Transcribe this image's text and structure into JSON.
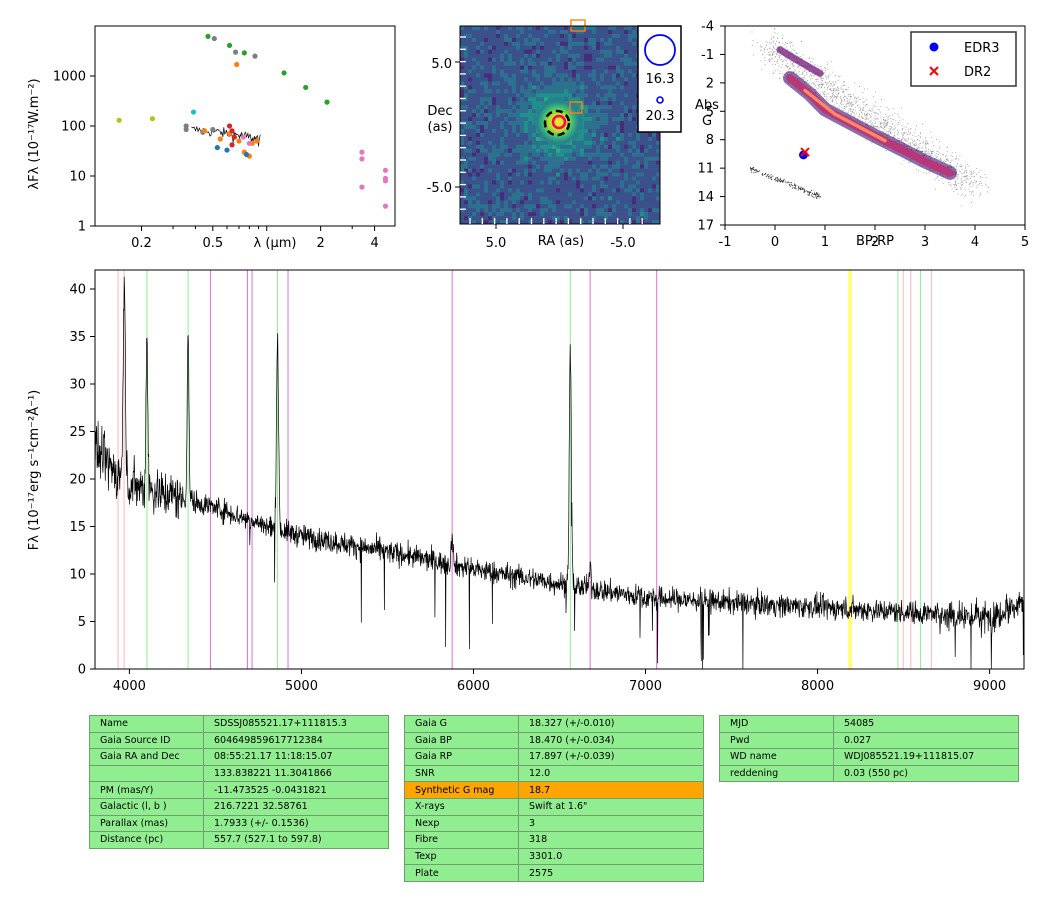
{
  "chart_data": [
    {
      "type": "scatter",
      "panel": "sed",
      "xlabel": "λ (μm)",
      "ylabel": "λFλ (10⁻¹⁷W.m⁻²)",
      "xscale": "log",
      "yscale": "log",
      "xlim": [
        0.11,
        5.2
      ],
      "ylim": [
        1,
        10000
      ],
      "xticks": [
        "0.2",
        "0.5",
        "2",
        "4"
      ],
      "yticks": [
        "1",
        "10",
        "100",
        "1000"
      ],
      "series": [
        {
          "color": "#2ca02c",
          "points": [
            [
              0.47,
              6200
            ],
            [
              0.62,
              4100
            ],
            [
              0.75,
              2900
            ],
            [
              1.25,
              1150
            ],
            [
              1.65,
              590
            ],
            [
              2.17,
              300
            ]
          ]
        },
        {
          "color": "#7f7f7f",
          "points": [
            [
              0.51,
              5600
            ],
            [
              0.67,
              3000
            ],
            [
              0.86,
              2500
            ],
            [
              0.355,
              85
            ],
            [
              0.355,
              100
            ],
            [
              0.44,
              75
            ],
            [
              0.5,
              85
            ]
          ]
        },
        {
          "color": "#ff7f0e",
          "points": [
            [
              0.68,
              1700
            ],
            [
              0.45,
              80
            ],
            [
              0.55,
              55
            ],
            [
              0.62,
              70
            ],
            [
              0.7,
              50
            ],
            [
              0.75,
              30
            ],
            [
              0.8,
              25
            ],
            [
              0.83,
              45
            ],
            [
              0.88,
              50
            ]
          ]
        },
        {
          "color": "#bcbd22",
          "points": [
            [
              0.15,
              130
            ],
            [
              0.23,
              140
            ]
          ]
        },
        {
          "color": "#17becf",
          "points": [
            [
              0.39,
              190
            ]
          ]
        },
        {
          "color": "#1f77b4",
          "points": [
            [
              0.53,
              37
            ],
            [
              0.6,
              33
            ],
            [
              0.77,
              27
            ]
          ]
        },
        {
          "color": "#d62728",
          "points": [
            [
              0.62,
              100
            ],
            [
              0.64,
              80
            ],
            [
              0.66,
              60
            ],
            [
              0.64,
              42
            ]
          ]
        },
        {
          "color": "#e377c2",
          "points": [
            [
              3.4,
              30
            ],
            [
              3.4,
              22
            ],
            [
              3.4,
              6
            ],
            [
              4.6,
              13
            ],
            [
              4.6,
              9
            ],
            [
              4.6,
              8
            ],
            [
              4.6,
              2.5
            ],
            [
              0.74,
              60
            ],
            [
              0.8,
              45
            ]
          ]
        }
      ],
      "spectrum_segment": true
    },
    {
      "type": "heatmap",
      "panel": "image",
      "xlabel": "RA (as)",
      "ylabel": "Dec\n(as)",
      "xlim": [
        8,
        -8
      ],
      "ylim": [
        -8,
        8
      ],
      "xticks": [
        "5.0",
        "-5.0"
      ],
      "yticks": [
        "5.0",
        "-5.0"
      ],
      "legend": [
        "16.3",
        "20.3"
      ]
    },
    {
      "type": "scatter",
      "panel": "hrd",
      "xlabel": "BP-RP",
      "ylabel": "Abs\nG",
      "xlim": [
        -1,
        5
      ],
      "ylim": [
        17,
        -4
      ],
      "xticks": [
        "-1",
        "0",
        "1",
        "2",
        "3",
        "4",
        "5"
      ],
      "yticks": [
        "-4",
        "-1",
        "2",
        "5",
        "8",
        "11",
        "14",
        "17"
      ],
      "legend": [
        {
          "name": "EDR3",
          "color": "#0000ff",
          "marker": "circle"
        },
        {
          "name": "DR2",
          "color": "#ff0000",
          "marker": "x"
        }
      ],
      "target": {
        "edr3": [
          0.57,
          9.6
        ],
        "dr2": [
          0.6,
          9.3
        ]
      }
    },
    {
      "type": "line",
      "panel": "spectrum",
      "xlabel": "",
      "ylabel": "Fλ (10⁻¹⁷erg s⁻¹cm⁻²Å⁻¹)",
      "xlim": [
        3800,
        9200
      ],
      "ylim": [
        0,
        42
      ],
      "xticks": [
        "4000",
        "5000",
        "6000",
        "7000",
        "8000",
        "9000"
      ],
      "yticks": [
        "0",
        "5",
        "10",
        "15",
        "20",
        "25",
        "30",
        "35",
        "40"
      ],
      "continuum": [
        [
          3800,
          23
        ],
        [
          3900,
          21
        ],
        [
          4000,
          19.5
        ],
        [
          4200,
          18.5
        ],
        [
          4500,
          17
        ],
        [
          4800,
          15
        ],
        [
          5000,
          14
        ],
        [
          5300,
          13
        ],
        [
          5600,
          12
        ],
        [
          6000,
          10.5
        ],
        [
          6500,
          9
        ],
        [
          7000,
          7.5
        ],
        [
          7500,
          7
        ],
        [
          8000,
          6.5
        ],
        [
          8500,
          6
        ],
        [
          9000,
          5.5
        ],
        [
          9200,
          7
        ]
      ],
      "emission": [
        [
          3970,
          41,
          6
        ],
        [
          4102,
          36,
          5
        ],
        [
          4341,
          36,
          5
        ],
        [
          4861,
          35,
          6
        ],
        [
          5876,
          14.5,
          5
        ],
        [
          6563,
          33.5,
          6
        ],
        [
          6678,
          11,
          4
        ]
      ],
      "vlines": [
        {
          "x": 3934,
          "color": "#ffb6c1"
        },
        {
          "x": 3969,
          "color": "#ffb6c1"
        },
        {
          "x": 4102,
          "color": "#90ee90"
        },
        {
          "x": 4341,
          "color": "#90ee90"
        },
        {
          "x": 4471,
          "color": "#da70d6"
        },
        {
          "x": 4686,
          "color": "#da70d6"
        },
        {
          "x": 4713,
          "color": "#da70d6"
        },
        {
          "x": 4861,
          "color": "#90ee90"
        },
        {
          "x": 4922,
          "color": "#da70d6"
        },
        {
          "x": 5876,
          "color": "#da70d6"
        },
        {
          "x": 6563,
          "color": "#90ee90"
        },
        {
          "x": 6678,
          "color": "#da70d6"
        },
        {
          "x": 7065,
          "color": "#da70d6"
        },
        {
          "x": 8183,
          "color": "#ffff00"
        },
        {
          "x": 8195,
          "color": "#ffff00"
        },
        {
          "x": 8467,
          "color": "#90ee90"
        },
        {
          "x": 8498,
          "color": "#ffb6c1"
        },
        {
          "x": 8542,
          "color": "#ffb6c1"
        },
        {
          "x": 8598,
          "color": "#90ee90"
        },
        {
          "x": 8662,
          "color": "#ffb6c1"
        }
      ]
    }
  ],
  "tables": [
    {
      "rows": [
        [
          "Name",
          "SDSSJ085521.17+111815.3"
        ],
        [
          "Gaia Source ID",
          "604649859617712384"
        ],
        [
          "Gaia RA and Dec",
          "08:55:21.17    11:18:15.07"
        ],
        [
          "",
          "133.838221    11.3041866"
        ],
        [
          "PM (mas/Y)",
          "-11.473525    -0.0431821"
        ],
        [
          "Galactic (l, b )",
          "216.7221    32.58761"
        ],
        [
          "Parallax (mas)",
          "1.7933 (+/- 0.1536)"
        ],
        [
          "Distance (pc)",
          "557.7 (527.1 to 597.8)"
        ]
      ]
    },
    {
      "rows": [
        [
          "Gaia G",
          "18.327 (+/-0.010)"
        ],
        [
          "Gaia BP",
          "18.470 (+/-0.034)"
        ],
        [
          "Gaia RP",
          "17.897 (+/-0.039)"
        ],
        [
          "SNR",
          "12.0"
        ],
        [
          "Synthetic G mag",
          "18.7"
        ],
        [
          "X-rays",
          "Swift at 1.6\""
        ],
        [
          "Nexp",
          "3"
        ],
        [
          "Fibre",
          "318"
        ],
        [
          "Texp",
          "3301.0"
        ],
        [
          "Plate",
          "2575"
        ]
      ],
      "highlight_row": 4
    },
    {
      "rows": [
        [
          "MJD",
          "54085"
        ],
        [
          "Pwd",
          "0.027"
        ],
        [
          "WD name",
          "WDJ085521.19+111815.07"
        ],
        [
          "reddening",
          "0.03 (550 pc)"
        ]
      ]
    }
  ]
}
